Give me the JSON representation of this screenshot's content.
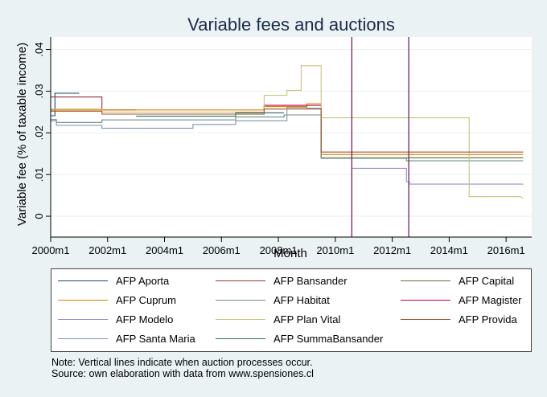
{
  "chart_data": {
    "type": "line",
    "title": "Variable fees and auctions",
    "xlabel": "Month",
    "ylabel": "Variable fee (% of taxable income)",
    "x_tick_labels": [
      "2000m1",
      "2002m1",
      "2004m1",
      "2006m1",
      "2008m1",
      "2010m1",
      "2012m1",
      "2014m1",
      "2016m1"
    ],
    "y_tick_labels": [
      "0",
      ".01",
      ".02",
      ".03",
      ".04"
    ],
    "xlim": [
      2000.0,
      2016.9
    ],
    "ylim": [
      -0.005,
      0.043
    ],
    "x_ticks": [
      2000,
      2002,
      2004,
      2006,
      2008,
      2010,
      2012,
      2014,
      2016
    ],
    "y_ticks": [
      0,
      0.01,
      0.02,
      0.03,
      0.04
    ],
    "grid": true,
    "auction_lines_x": [
      2010.58,
      2012.58
    ],
    "auction_line_color": "#7a1f5c",
    "series": [
      {
        "name": "AFP Aporta",
        "color": "#1a476f",
        "points": [
          [
            2000.0,
            0.0241
          ],
          [
            2000.15,
            0.0241
          ],
          [
            2000.15,
            0.0295
          ],
          [
            2001.0,
            0.0295
          ]
        ]
      },
      {
        "name": "AFP Bansander",
        "color": "#90353b",
        "points": [
          [
            2000.0,
            0.0286
          ],
          [
            2001.8,
            0.0286
          ],
          [
            2001.8,
            0.0255
          ],
          [
            2003.0,
            0.0255
          ]
        ]
      },
      {
        "name": "AFP Capital",
        "color": "#55752f",
        "points": [
          [
            2009.5,
            0.025
          ],
          [
            2009.5,
            0.014
          ],
          [
            2016.6,
            0.014
          ]
        ]
      },
      {
        "name": "AFP Cuprum",
        "color": "#e37e00",
        "points": [
          [
            2000.0,
            0.0255
          ],
          [
            2007.5,
            0.0255
          ],
          [
            2007.5,
            0.0263
          ],
          [
            2009.0,
            0.0263
          ],
          [
            2009.0,
            0.027
          ],
          [
            2009.5,
            0.027
          ],
          [
            2009.5,
            0.0148
          ],
          [
            2016.6,
            0.0148
          ]
        ]
      },
      {
        "name": "AFP Habitat",
        "color": "#6e8e84",
        "points": [
          [
            2000.0,
            0.0232
          ],
          [
            2000.2,
            0.0232
          ],
          [
            2000.2,
            0.0225
          ],
          [
            2001.8,
            0.0225
          ],
          [
            2001.8,
            0.0231
          ],
          [
            2006.5,
            0.0231
          ],
          [
            2006.5,
            0.0238
          ],
          [
            2008.2,
            0.0238
          ],
          [
            2008.2,
            0.0243
          ],
          [
            2009.5,
            0.0243
          ],
          [
            2009.5,
            0.0139
          ],
          [
            2012.5,
            0.0139
          ],
          [
            2012.5,
            0.0133
          ],
          [
            2016.6,
            0.0133
          ]
        ]
      },
      {
        "name": "AFP Magister",
        "color": "#c10534",
        "points": [
          [
            2007.5,
            0.0255
          ],
          [
            2007.5,
            0.0266
          ],
          [
            2009.5,
            0.0266
          ]
        ]
      },
      {
        "name": "AFP Modelo",
        "color": "#938dd2",
        "points": [
          [
            2010.6,
            0.0115
          ],
          [
            2012.5,
            0.0115
          ],
          [
            2012.5,
            0.0083
          ],
          [
            2012.6,
            0.0083
          ],
          [
            2012.6,
            0.0077
          ],
          [
            2016.6,
            0.0077
          ]
        ]
      },
      {
        "name": "AFP Plan Vital",
        "color": "#cac27e",
        "points": [
          [
            2000.0,
            0.0257
          ],
          [
            2001.8,
            0.0257
          ],
          [
            2001.8,
            0.025
          ],
          [
            2007.5,
            0.025
          ],
          [
            2007.5,
            0.029
          ],
          [
            2008.3,
            0.029
          ],
          [
            2008.3,
            0.0302
          ],
          [
            2008.8,
            0.0302
          ],
          [
            2008.8,
            0.0361
          ],
          [
            2009.5,
            0.0361
          ],
          [
            2009.5,
            0.0236
          ],
          [
            2014.7,
            0.0236
          ],
          [
            2014.7,
            0.0047
          ],
          [
            2016.5,
            0.0047
          ],
          [
            2016.6,
            0.0043
          ]
        ]
      },
      {
        "name": "AFP Provida",
        "color": "#a0522d",
        "points": [
          [
            2000.0,
            0.0252
          ],
          [
            2001.8,
            0.0252
          ],
          [
            2001.8,
            0.0245
          ],
          [
            2007.5,
            0.0245
          ],
          [
            2007.5,
            0.0257
          ],
          [
            2009.5,
            0.0257
          ],
          [
            2009.5,
            0.0154
          ],
          [
            2016.6,
            0.0154
          ]
        ]
      },
      {
        "name": "AFP Santa Maria",
        "color": "#7b92a8",
        "points": [
          [
            2000.0,
            0.0229
          ],
          [
            2000.2,
            0.0229
          ],
          [
            2000.2,
            0.0218
          ],
          [
            2001.8,
            0.0218
          ],
          [
            2001.8,
            0.0211
          ],
          [
            2005.0,
            0.0211
          ],
          [
            2005.0,
            0.022
          ],
          [
            2006.5,
            0.022
          ],
          [
            2006.5,
            0.0229
          ],
          [
            2008.3,
            0.0229
          ],
          [
            2008.3,
            0.0261
          ],
          [
            2009.0,
            0.0261
          ],
          [
            2009.0,
            0.0259
          ],
          [
            2009.5,
            0.0259
          ]
        ]
      },
      {
        "name": "AFP SummaBansander",
        "color": "#2d6d66",
        "points": [
          [
            2003.0,
            0.024
          ],
          [
            2006.5,
            0.024
          ],
          [
            2006.5,
            0.0248
          ],
          [
            2008.2,
            0.0248
          ]
        ]
      }
    ],
    "note_line1": "Note: Vertical lines indicate when auction processes occur.",
    "note_line2": "Source: own elaboration with data from www.spensiones.cl"
  }
}
